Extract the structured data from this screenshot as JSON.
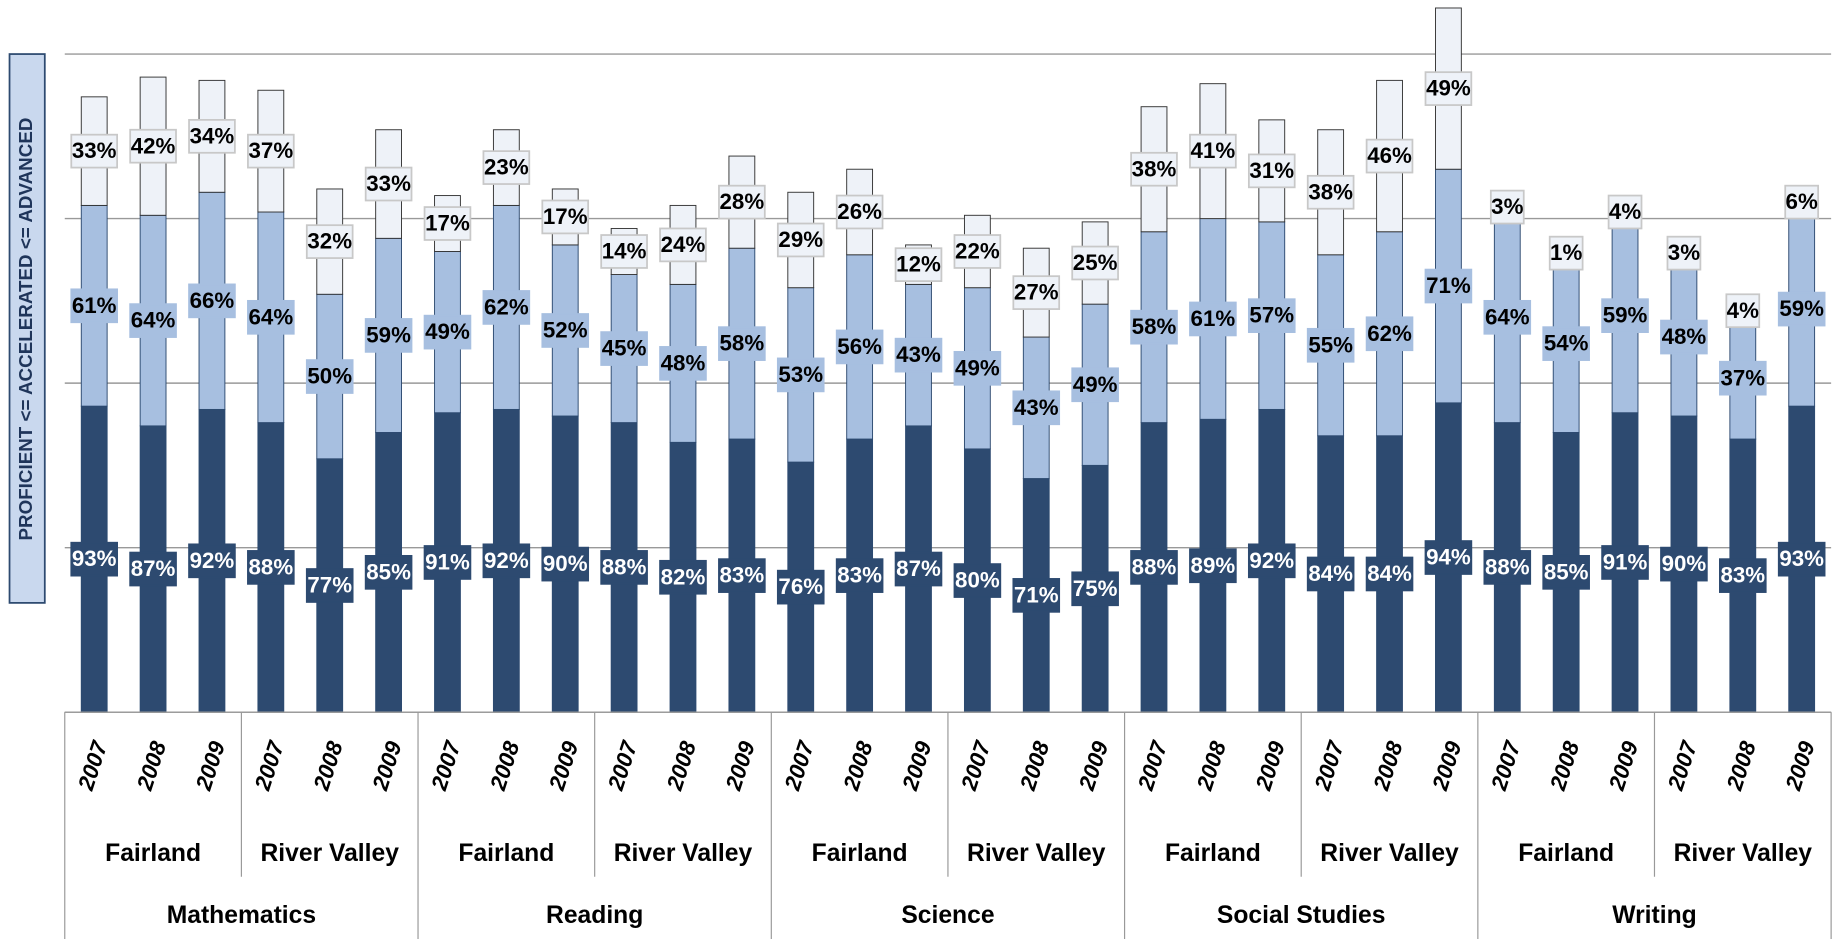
{
  "chart_data": {
    "type": "bar",
    "stacked": true,
    "y_label": "PROFICIENT <= ACCELERATED <= ADVANCED",
    "categories": [
      "2007",
      "2008",
      "2009",
      "2007",
      "2008",
      "2009",
      "2007",
      "2008",
      "2009",
      "2007",
      "2008",
      "2009",
      "2007",
      "2008",
      "2009",
      "2007",
      "2008",
      "2009",
      "2007",
      "2008",
      "2009",
      "2007",
      "2008",
      "2009",
      "2007",
      "2008",
      "2009",
      "2007",
      "2008",
      "2009"
    ],
    "schools": [
      "Fairland",
      "River Valley",
      "Fairland",
      "River Valley",
      "Fairland",
      "River Valley",
      "Fairland",
      "River Valley",
      "Fairland",
      "River Valley"
    ],
    "subjects": [
      "Mathematics",
      "Reading",
      "Science",
      "Social Studies",
      "Writing"
    ],
    "series": [
      {
        "color": "#2d4a70",
        "values": [
          93,
          87,
          92,
          88,
          77,
          85,
          91,
          92,
          90,
          88,
          82,
          83,
          76,
          83,
          87,
          80,
          71,
          75,
          88,
          89,
          92,
          84,
          84,
          94,
          88,
          85,
          91,
          90,
          83,
          93
        ],
        "value_labels": [
          "93%",
          "87%",
          "92%",
          "88%",
          "77%",
          "85%",
          "91%",
          "92%",
          "90%",
          "88%",
          "82%",
          "83%",
          "76%",
          "83%",
          "87%",
          "80%",
          "71%",
          "75%",
          "88%",
          "89%",
          "92%",
          "84%",
          "84%",
          "94%",
          "88%",
          "85%",
          "91%",
          "90%",
          "83%",
          "93%"
        ]
      },
      {
        "color": "#a7bfe0",
        "values": [
          61,
          64,
          66,
          64,
          50,
          59,
          49,
          62,
          52,
          45,
          48,
          58,
          53,
          56,
          43,
          49,
          43,
          49,
          58,
          61,
          57,
          55,
          62,
          71,
          64,
          54,
          59,
          48,
          37,
          59
        ],
        "value_labels": [
          "61%",
          "64%",
          "66%",
          "64%",
          "50%",
          "59%",
          "49%",
          "62%",
          "52%",
          "45%",
          "48%",
          "58%",
          "53%",
          "56%",
          "43%",
          "49%",
          "43%",
          "49%",
          "58%",
          "61%",
          "57%",
          "55%",
          "62%",
          "71%",
          "64%",
          "54%",
          "59%",
          "48%",
          "37%",
          "59%"
        ]
      },
      {
        "color": "#eef2f8",
        "values": [
          33,
          42,
          34,
          37,
          32,
          33,
          17,
          23,
          17,
          14,
          24,
          28,
          29,
          26,
          12,
          22,
          27,
          25,
          38,
          41,
          31,
          38,
          46,
          49,
          3,
          1,
          4,
          3,
          4,
          6
        ],
        "value_labels": [
          "33%",
          "42%",
          "34%",
          "37%",
          "32%",
          "33%",
          "17%",
          "23%",
          "17%",
          "14%",
          "24%",
          "28%",
          "29%",
          "26%",
          "12%",
          "22%",
          "27%",
          "25%",
          "38%",
          "41%",
          "31%",
          "38%",
          "46%",
          "49%",
          "3%",
          "1%",
          "4%",
          "3%",
          "4%",
          "6%"
        ]
      }
    ],
    "ylim": [
      0,
      200
    ],
    "yticks": [
      0,
      50,
      100,
      150,
      200
    ],
    "grid": true
  }
}
